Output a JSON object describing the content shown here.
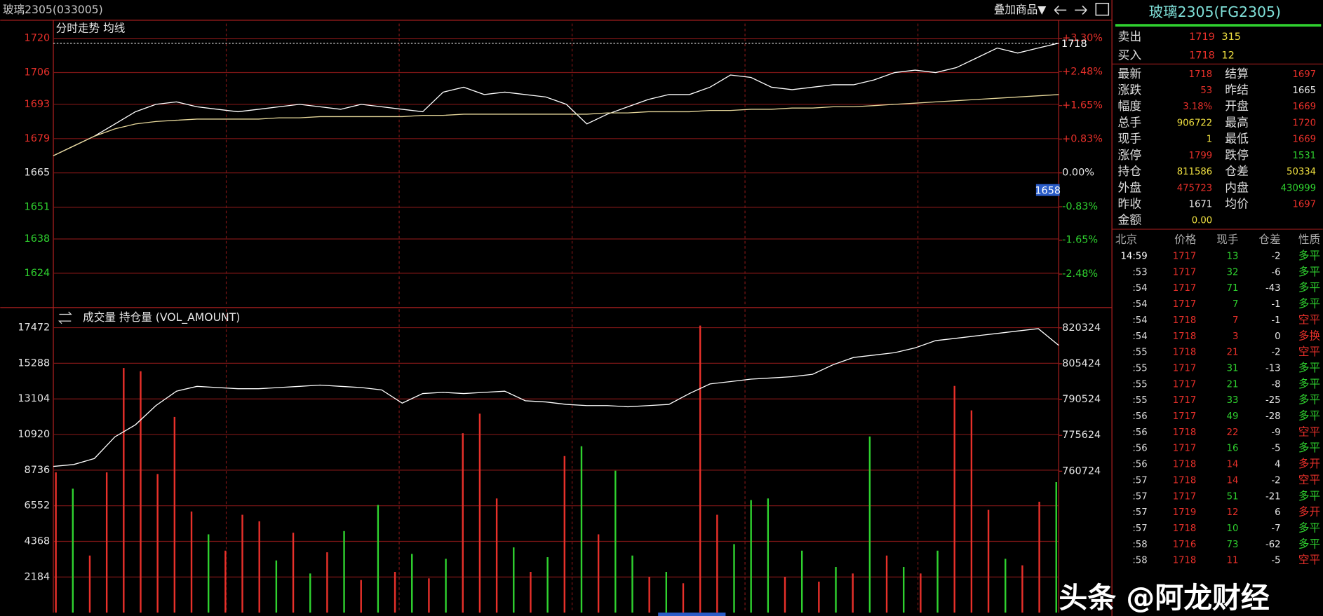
{
  "header": {
    "title": "玻璃2305(033005)",
    "overlay_button": "叠加商品▼"
  },
  "chart_data": [
    {
      "type": "line",
      "title": "分时走势 均线",
      "series": [
        {
          "color": "#ffffff",
          "values": [
            1672,
            1676,
            1680,
            1685,
            1690,
            1693,
            1694,
            1692,
            1691,
            1690,
            1691,
            1692,
            1693,
            1692,
            1691,
            1693,
            1692,
            1691,
            1690,
            1698,
            1700,
            1697,
            1698,
            1697,
            1696,
            1693,
            1685,
            1689,
            1692,
            1695,
            1697,
            1697,
            1700,
            1705,
            1704,
            1700,
            1699,
            1700,
            1701,
            1701,
            1703,
            1706,
            1707,
            1706,
            1708,
            1712,
            1716,
            1714,
            1716,
            1718
          ]
        },
        {
          "color": "#e6d79a",
          "values": [
            1672,
            1676,
            1680,
            1683,
            1685,
            1686,
            1686.5,
            1687,
            1687,
            1687,
            1687,
            1687.5,
            1687.5,
            1688,
            1688,
            1688,
            1688,
            1688,
            1688.5,
            1688.5,
            1689,
            1689,
            1689,
            1689,
            1689,
            1689,
            1689,
            1689.5,
            1689.5,
            1690,
            1690,
            1690,
            1690.5,
            1690.5,
            1691,
            1691,
            1691.5,
            1691.5,
            1692,
            1692,
            1692.5,
            1693,
            1693.5,
            1694,
            1694.5,
            1695,
            1695.5,
            1696,
            1696.5,
            1697
          ]
        }
      ],
      "ylim": [
        1611,
        1726
      ],
      "yticks": [
        1720,
        1706,
        1693,
        1679,
        1665,
        1651,
        1638,
        1624
      ],
      "y2lim": [
        -3.24,
        3.66
      ],
      "y2ticks": [
        {
          "value": 3.3,
          "label": "+3.30%"
        },
        {
          "value": 2.48,
          "label": "+2.48%"
        },
        {
          "value": 1.65,
          "label": "+1.65%"
        },
        {
          "value": 0.83,
          "label": "+0.83%"
        },
        {
          "value": 0,
          "label": "0.00%"
        },
        {
          "value": -0.83,
          "label": "-0.83%"
        },
        {
          "value": -1.65,
          "label": "-1.65%"
        },
        {
          "value": -2.48,
          "label": "-2.48%"
        }
      ],
      "reference_line": 1718,
      "cursor_label": 1658,
      "grid": true
    },
    {
      "type": "bar",
      "title": "成交量 持仓量 (VOL_AMOUNT)",
      "series": [
        {
          "type": "bar",
          "values": [
            8600,
            7600,
            3500,
            8600,
            15000,
            14800,
            8500,
            12000,
            6200,
            4800,
            3800,
            6000,
            5600,
            3200,
            4900,
            2400,
            3700,
            5000,
            2000,
            6600,
            2500,
            3600,
            2100,
            3300,
            11000,
            12200,
            7000,
            4000,
            2500,
            3400,
            9600,
            10200,
            4800,
            8700,
            3500,
            2200,
            2500,
            1800,
            17600,
            6000,
            4200,
            6900,
            7000,
            2200,
            3800,
            1900,
            2800,
            2400,
            10800,
            3500,
            2800,
            2400,
            3800,
            13900,
            12400,
            6300,
            3300,
            2900,
            6800,
            8000
          ],
          "colors": [
            "#e8302a",
            "#2fd12f",
            "#e8302a",
            "#e8302a",
            "#e8302a",
            "#e8302a",
            "#e8302a",
            "#e8302a",
            "#e8302a",
            "#2fd12f",
            "#e8302a",
            "#e8302a",
            "#e8302a",
            "#2fd12f",
            "#e8302a",
            "#2fd12f",
            "#e8302a",
            "#2fd12f",
            "#e8302a",
            "#2fd12f",
            "#e8302a",
            "#2fd12f",
            "#e8302a",
            "#2fd12f",
            "#e8302a",
            "#e8302a",
            "#e8302a",
            "#2fd12f",
            "#e8302a",
            "#2fd12f",
            "#e8302a",
            "#2fd12f",
            "#e8302a",
            "#2fd12f",
            "#2fd12f",
            "#e8302a",
            "#2fd12f",
            "#e8302a",
            "#e8302a",
            "#e8302a",
            "#2fd12f",
            "#2fd12f",
            "#2fd12f",
            "#e8302a",
            "#2fd12f",
            "#e8302a",
            "#2fd12f",
            "#e8302a",
            "#2fd12f",
            "#e8302a",
            "#2fd12f",
            "#e8302a",
            "#2fd12f",
            "#e8302a",
            "#e8302a",
            "#e8302a",
            "#2fd12f",
            "#e8302a",
            "#e8302a",
            "#2fd12f"
          ]
        },
        {
          "type": "line",
          "axis": "y2",
          "color": "#ffffff",
          "values": [
            762700,
            763500,
            766000,
            775000,
            780000,
            788000,
            794000,
            796000,
            795500,
            795000,
            795000,
            795500,
            796000,
            796500,
            796000,
            795500,
            794500,
            789000,
            793000,
            793500,
            793000,
            793500,
            794000,
            790000,
            789500,
            788500,
            788000,
            788000,
            787500,
            788000,
            788500,
            793000,
            797000,
            798000,
            799000,
            799500,
            800000,
            801000,
            805000,
            808000,
            809000,
            810000,
            812000,
            815000,
            816000,
            817000,
            818000,
            819000,
            820000,
            813000
          ]
        }
      ],
      "ylim": [
        0,
        18600
      ],
      "yticks": [
        17472,
        15288,
        13104,
        10920,
        8736,
        6552,
        4368,
        2184
      ],
      "y2lim": [
        701900,
        828050
      ],
      "y2ticks": [
        820324,
        805424,
        790524,
        775624,
        760724
      ],
      "grid": true
    }
  ],
  "quote": {
    "title": "玻璃2305(FG2305)",
    "ask": {
      "label": "卖出",
      "price": "1719",
      "volume": "315"
    },
    "bid": {
      "label": "买入",
      "price": "1718",
      "volume": "12"
    },
    "fields": [
      [
        "最新",
        "1718"
      ],
      [
        "结算",
        "1697"
      ],
      [
        "涨跌",
        "53"
      ],
      [
        "昨结",
        "1665"
      ],
      [
        "幅度",
        "3.18%"
      ],
      [
        "开盘",
        "1669"
      ],
      [
        "总手",
        "906722"
      ],
      [
        "最高",
        "1720"
      ],
      [
        "现手",
        "1"
      ],
      [
        "最低",
        "1669"
      ],
      [
        "涨停",
        "1799"
      ],
      [
        "跌停",
        "1531"
      ],
      [
        "持仓",
        "811586"
      ],
      [
        "仓差",
        "50334"
      ],
      [
        "外盘",
        "475723"
      ],
      [
        "内盘",
        "430999"
      ],
      [
        "昨收",
        "1671"
      ],
      [
        "均价",
        "1697"
      ],
      [
        "金额",
        "0.00"
      ]
    ]
  },
  "ticks": {
    "header": [
      "北京",
      "价格",
      "现手",
      "仓差",
      "性质"
    ],
    "rows": [
      [
        "14:59",
        "1717",
        "13",
        "-2",
        "多平"
      ],
      [
        ":53",
        "1717",
        "32",
        "-6",
        "多平"
      ],
      [
        ":54",
        "1717",
        "71",
        "-43",
        "多平"
      ],
      [
        ":54",
        "1717",
        "7",
        "-1",
        "多平"
      ],
      [
        ":54",
        "1718",
        "7",
        "-1",
        "空平"
      ],
      [
        ":54",
        "1718",
        "3",
        "0",
        "多换"
      ],
      [
        ":55",
        "1718",
        "21",
        "-2",
        "空平"
      ],
      [
        ":55",
        "1717",
        "31",
        "-13",
        "多平"
      ],
      [
        ":55",
        "1717",
        "21",
        "-8",
        "多平"
      ],
      [
        ":55",
        "1717",
        "33",
        "-25",
        "多平"
      ],
      [
        ":56",
        "1717",
        "49",
        "-28",
        "多平"
      ],
      [
        ":56",
        "1718",
        "22",
        "-9",
        "空平"
      ],
      [
        ":56",
        "1717",
        "16",
        "-5",
        "多平"
      ],
      [
        ":56",
        "1718",
        "14",
        "4",
        "多开"
      ],
      [
        ":57",
        "1718",
        "14",
        "-2",
        "空平"
      ],
      [
        ":57",
        "1717",
        "51",
        "-21",
        "多平"
      ],
      [
        ":57",
        "1719",
        "12",
        "6",
        "多开"
      ],
      [
        ":57",
        "1718",
        "10",
        "-7",
        "多平"
      ],
      [
        ":58",
        "1716",
        "73",
        "-62",
        "多平"
      ],
      [
        ":58",
        "1718",
        "11",
        "-5",
        "空平"
      ]
    ]
  },
  "watermark": "头条 @阿龙财经"
}
